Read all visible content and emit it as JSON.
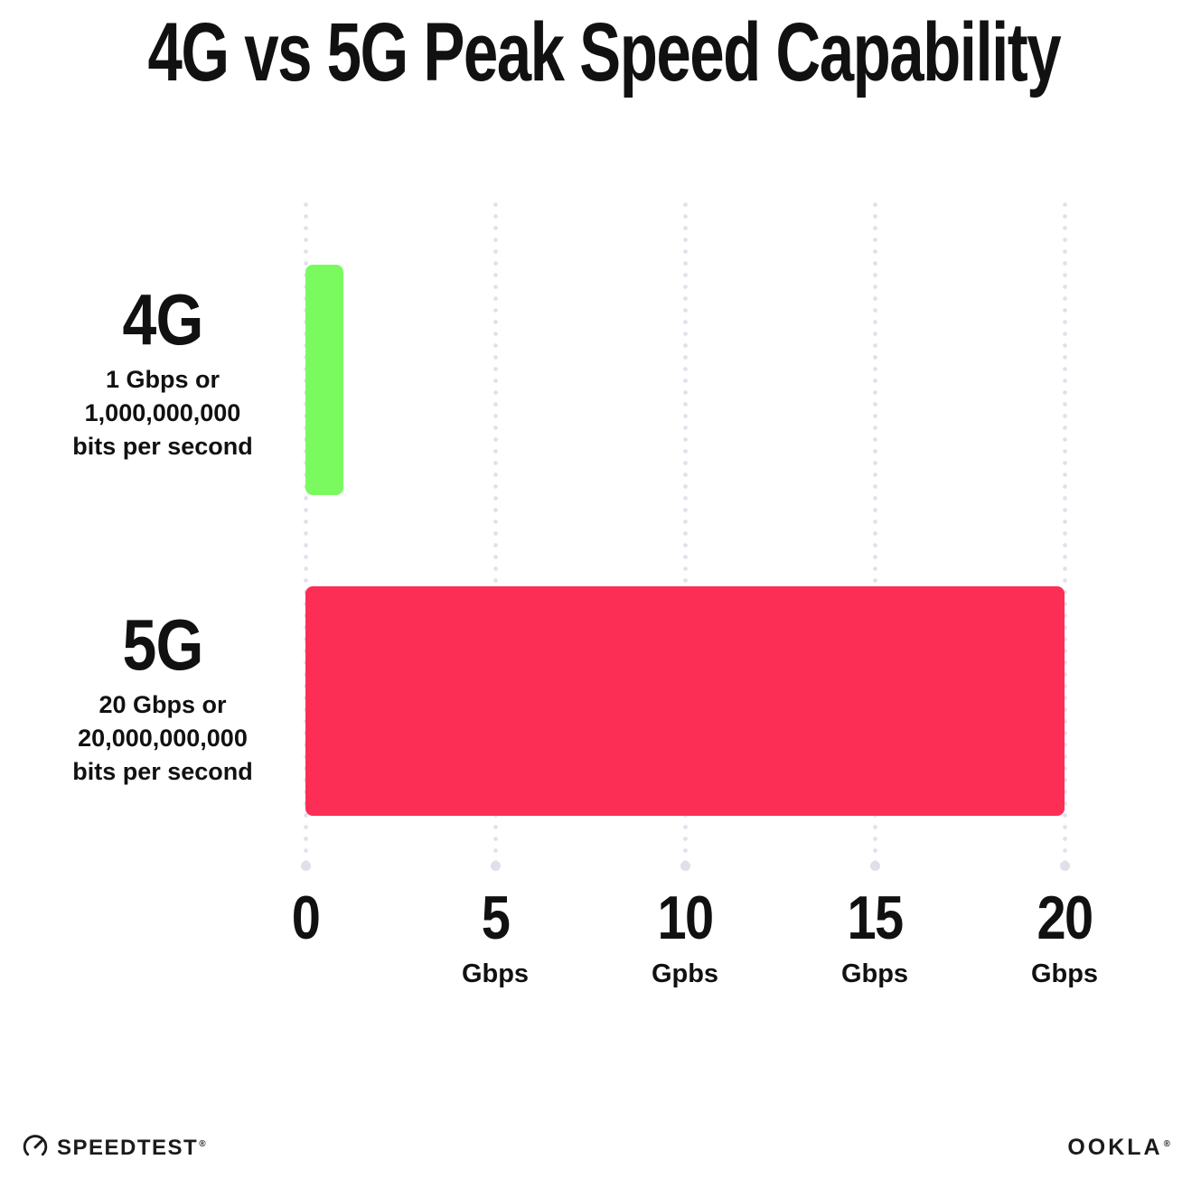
{
  "title": "4G vs 5G Peak Speed Capability",
  "chart_data": {
    "type": "bar",
    "orientation": "horizontal",
    "title": "4G vs 5G Peak Speed Capability",
    "categories": [
      "4G",
      "5G"
    ],
    "values": [
      1,
      20
    ],
    "value_unit": "Gbps",
    "bar_colors": [
      "#7bfa60",
      "#fd2e55"
    ],
    "xlim": [
      0,
      20
    ],
    "x_tick_values": [
      0,
      5,
      10,
      15,
      20
    ],
    "grid": "vertical dotted gridlines, light gray, with larger end dot at bottom",
    "legend": "none",
    "annotations": [
      "4G: 1 Gbps or 1,000,000,000 bits per second",
      "5G: 20 Gbps or 20,000,000,000 bits per second"
    ]
  },
  "rows": [
    {
      "label": "4G",
      "desc_lines": [
        "1 Gbps or",
        "1,000,000,000",
        "bits per second"
      ]
    },
    {
      "label": "5G",
      "desc_lines": [
        "20 Gbps or",
        "20,000,000,000",
        "bits per second"
      ]
    }
  ],
  "ticks": [
    {
      "value": "0",
      "unit": ""
    },
    {
      "value": "5",
      "unit": "Gbps"
    },
    {
      "value": "10",
      "unit": "Gpbs"
    },
    {
      "value": "15",
      "unit": "Gbps"
    },
    {
      "value": "20",
      "unit": "Gbps"
    }
  ],
  "footer": {
    "speedtest_label": "SPEEDTEST",
    "speedtest_mark": "®",
    "ookla_label": "OOKLA",
    "ookla_mark": "®"
  },
  "colors": {
    "bar_4g": "#7bfa60",
    "bar_5g": "#fd2e55",
    "grid_dot": "#dfe0ea",
    "text": "#111111",
    "background": "#ffffff"
  }
}
